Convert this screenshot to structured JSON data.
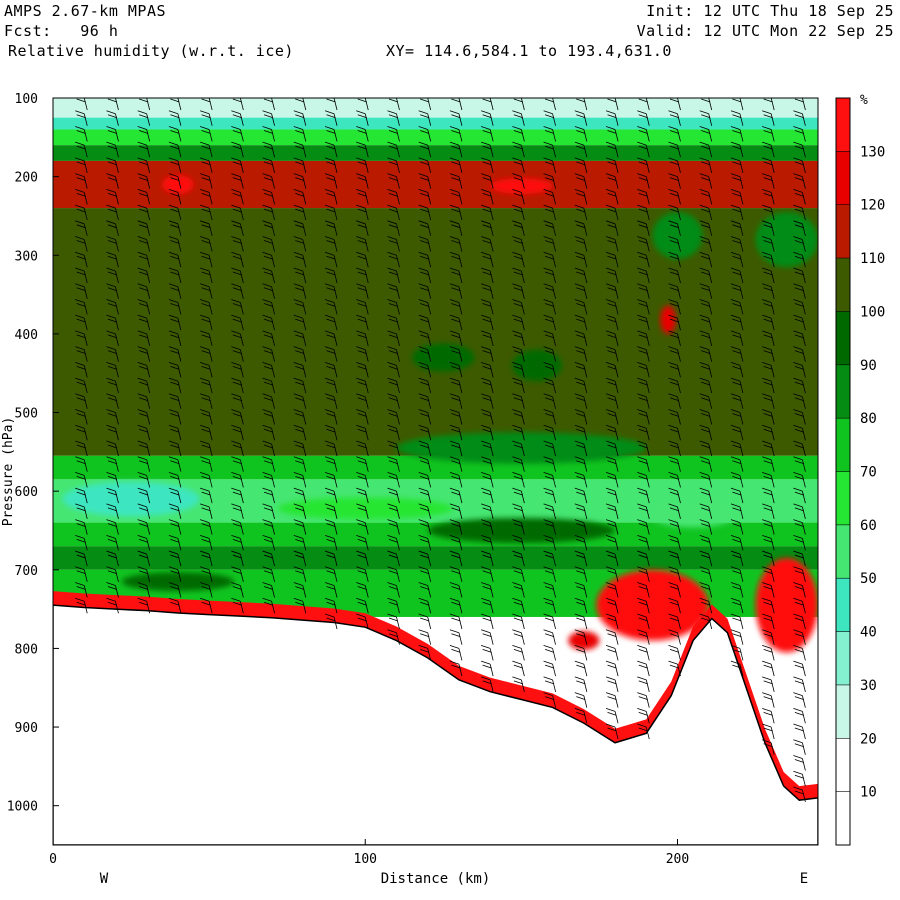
{
  "header": {
    "model": "AMPS 2.67-km MPAS",
    "forecast": "Fcst:   96 h",
    "field": "Relative humidity (w.r.t. ice)",
    "xy_range": "XY= 114.6,584.1 to 193.4,631.0",
    "init": "Init: 12 UTC Thu 18 Sep 25",
    "valid": "Valid: 12 UTC Mon 22 Sep 25"
  },
  "colors": {
    "ground": "#ffffff",
    "frame": "#000000",
    "barb": "#000000"
  },
  "chart_data": {
    "type": "heatmap",
    "title": "Relative humidity (w.r.t. ice)",
    "xlabel": "Distance (km)",
    "ylabel": "Pressure (hPa)",
    "xlim": [
      0,
      245
    ],
    "ylim": [
      1050,
      100
    ],
    "x_ticks": [
      0,
      100,
      200
    ],
    "y_ticks": [
      100,
      200,
      300,
      400,
      500,
      600,
      700,
      800,
      900,
      1000
    ],
    "x_end_labels": [
      "W",
      "E"
    ],
    "colorbar": {
      "unit": "%",
      "levels": [
        10,
        20,
        30,
        40,
        50,
        60,
        70,
        80,
        90,
        100,
        110,
        120,
        130
      ],
      "colors": [
        "#ffffff",
        "#ffffff",
        "#c8f7e8",
        "#84f0d0",
        "#3ee6c0",
        "#46e672",
        "#25e633",
        "#10c420",
        "#058c12",
        "#006a00",
        "#3d5a00",
        "#b91a00",
        "#e80000",
        "#ff1010"
      ]
    },
    "layers": [
      {
        "p_top": 100,
        "p_bottom": 125,
        "rh": 20
      },
      {
        "p_top": 125,
        "p_bottom": 140,
        "rh": 40
      },
      {
        "p_top": 140,
        "p_bottom": 160,
        "rh": 60
      },
      {
        "p_top": 160,
        "p_bottom": 180,
        "rh": 80
      },
      {
        "p_top": 180,
        "p_bottom": 240,
        "rh": 115
      },
      {
        "p_top": 240,
        "p_bottom": 555,
        "rh": 105
      },
      {
        "p_top": 555,
        "p_bottom": 585,
        "rh": 75
      },
      {
        "p_top": 585,
        "p_bottom": 640,
        "rh": 50
      },
      {
        "p_top": 640,
        "p_bottom": 670,
        "rh": 70
      },
      {
        "p_top": 670,
        "p_bottom": 700,
        "rh": 85
      },
      {
        "p_top": 700,
        "p_bottom": 760,
        "rh": 70
      }
    ],
    "surface_profile": [
      {
        "x": 0,
        "p": 745
      },
      {
        "x": 10,
        "p": 748
      },
      {
        "x": 20,
        "p": 750
      },
      {
        "x": 30,
        "p": 752
      },
      {
        "x": 40,
        "p": 755
      },
      {
        "x": 50,
        "p": 757
      },
      {
        "x": 60,
        "p": 759
      },
      {
        "x": 70,
        "p": 761
      },
      {
        "x": 80,
        "p": 764
      },
      {
        "x": 90,
        "p": 767
      },
      {
        "x": 100,
        "p": 773
      },
      {
        "x": 110,
        "p": 790
      },
      {
        "x": 120,
        "p": 812
      },
      {
        "x": 130,
        "p": 840
      },
      {
        "x": 140,
        "p": 855
      },
      {
        "x": 150,
        "p": 865
      },
      {
        "x": 160,
        "p": 875
      },
      {
        "x": 170,
        "p": 895
      },
      {
        "x": 180,
        "p": 920
      },
      {
        "x": 190,
        "p": 908
      },
      {
        "x": 198,
        "p": 860
      },
      {
        "x": 205,
        "p": 790
      },
      {
        "x": 211,
        "p": 762
      },
      {
        "x": 216,
        "p": 780
      },
      {
        "x": 222,
        "p": 850
      },
      {
        "x": 228,
        "p": 920
      },
      {
        "x": 234,
        "p": 975
      },
      {
        "x": 239,
        "p": 993
      },
      {
        "x": 245,
        "p": 990
      }
    ],
    "features": [
      {
        "kind": "moist",
        "x": 25,
        "p": 610,
        "rx_km": 22,
        "rp_hpa": 22,
        "rh": 40
      },
      {
        "kind": "moist",
        "x": 100,
        "p": 622,
        "rx_km": 28,
        "rp_hpa": 14,
        "rh": 60
      },
      {
        "kind": "moist",
        "x": 205,
        "p": 628,
        "rx_km": 14,
        "rp_hpa": 18,
        "rh": 50
      },
      {
        "kind": "dry",
        "x": 40,
        "p": 715,
        "rx_km": 18,
        "rp_hpa": 12,
        "rh": 95
      },
      {
        "kind": "dry",
        "x": 150,
        "p": 650,
        "rx_km": 30,
        "rp_hpa": 16,
        "rh": 95
      },
      {
        "kind": "moist",
        "x": 200,
        "p": 275,
        "rx_km": 8,
        "rp_hpa": 30,
        "rh": 80
      },
      {
        "kind": "moist",
        "x": 235,
        "p": 280,
        "rx_km": 10,
        "rp_hpa": 35,
        "rh": 80
      },
      {
        "kind": "moist",
        "x": 125,
        "p": 430,
        "rx_km": 10,
        "rp_hpa": 18,
        "rh": 90
      },
      {
        "kind": "moist",
        "x": 155,
        "p": 440,
        "rx_km": 8,
        "rp_hpa": 20,
        "rh": 90
      },
      {
        "kind": "sat",
        "x": 192,
        "p": 745,
        "rx_km": 18,
        "rp_hpa": 45,
        "rh": 130
      },
      {
        "kind": "sat",
        "x": 235,
        "p": 745,
        "rx_km": 10,
        "rp_hpa": 60,
        "rh": 130
      },
      {
        "kind": "sat",
        "x": 170,
        "p": 790,
        "rx_km": 5,
        "rp_hpa": 12,
        "rh": 120
      },
      {
        "kind": "sat",
        "x": 197,
        "p": 382,
        "rx_km": 2.5,
        "rp_hpa": 18,
        "rh": 120
      },
      {
        "kind": "sat",
        "x": 40,
        "p": 210,
        "rx_km": 5,
        "rp_hpa": 12,
        "rh": 130
      },
      {
        "kind": "sat",
        "x": 150,
        "p": 212,
        "rx_km": 10,
        "rp_hpa": 10,
        "rh": 130
      },
      {
        "kind": "moist",
        "x": 150,
        "p": 545,
        "rx_km": 40,
        "rp_hpa": 20,
        "rh": 80
      }
    ],
    "barb_x": [
      10,
      20,
      30,
      40,
      50,
      60,
      70,
      80,
      90,
      100,
      110,
      120,
      130,
      140,
      150,
      160,
      170,
      180,
      190,
      200,
      210,
      220,
      230,
      240
    ],
    "barb_p_start": 100,
    "barb_p_step": 20
  }
}
